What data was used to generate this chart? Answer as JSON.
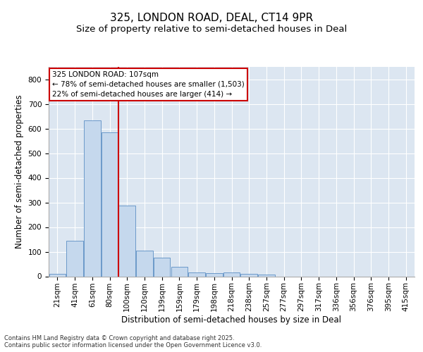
{
  "title": "325, LONDON ROAD, DEAL, CT14 9PR",
  "subtitle": "Size of property relative to semi-detached houses in Deal",
  "xlabel": "Distribution of semi-detached houses by size in Deal",
  "ylabel": "Number of semi-detached properties",
  "categories": [
    "21sqm",
    "41sqm",
    "61sqm",
    "80sqm",
    "100sqm",
    "120sqm",
    "139sqm",
    "159sqm",
    "179sqm",
    "198sqm",
    "218sqm",
    "238sqm",
    "257sqm",
    "277sqm",
    "297sqm",
    "317sqm",
    "336sqm",
    "356sqm",
    "376sqm",
    "395sqm",
    "415sqm"
  ],
  "values": [
    10,
    143,
    633,
    585,
    288,
    103,
    75,
    40,
    17,
    14,
    17,
    10,
    7,
    0,
    0,
    0,
    0,
    0,
    0,
    0,
    0
  ],
  "bar_color": "#c5d8ed",
  "bar_edge_color": "#5b8ec4",
  "background_color": "#dce6f1",
  "annotation_title": "325 LONDON ROAD: 107sqm",
  "annotation_line1": "← 78% of semi-detached houses are smaller (1,503)",
  "annotation_line2": "22% of semi-detached houses are larger (414) →",
  "annotation_box_color": "#ffffff",
  "annotation_box_edge": "#cc0000",
  "vline_color": "#cc0000",
  "vline_x_index": 4,
  "ylim": [
    0,
    850
  ],
  "yticks": [
    0,
    100,
    200,
    300,
    400,
    500,
    600,
    700,
    800
  ],
  "footer": "Contains HM Land Registry data © Crown copyright and database right 2025.\nContains public sector information licensed under the Open Government Licence v3.0.",
  "grid_color": "#ffffff",
  "title_fontsize": 11,
  "subtitle_fontsize": 9.5,
  "tick_fontsize": 7.5,
  "ylabel_fontsize": 8.5,
  "xlabel_fontsize": 8.5,
  "annotation_fontsize": 7.5
}
